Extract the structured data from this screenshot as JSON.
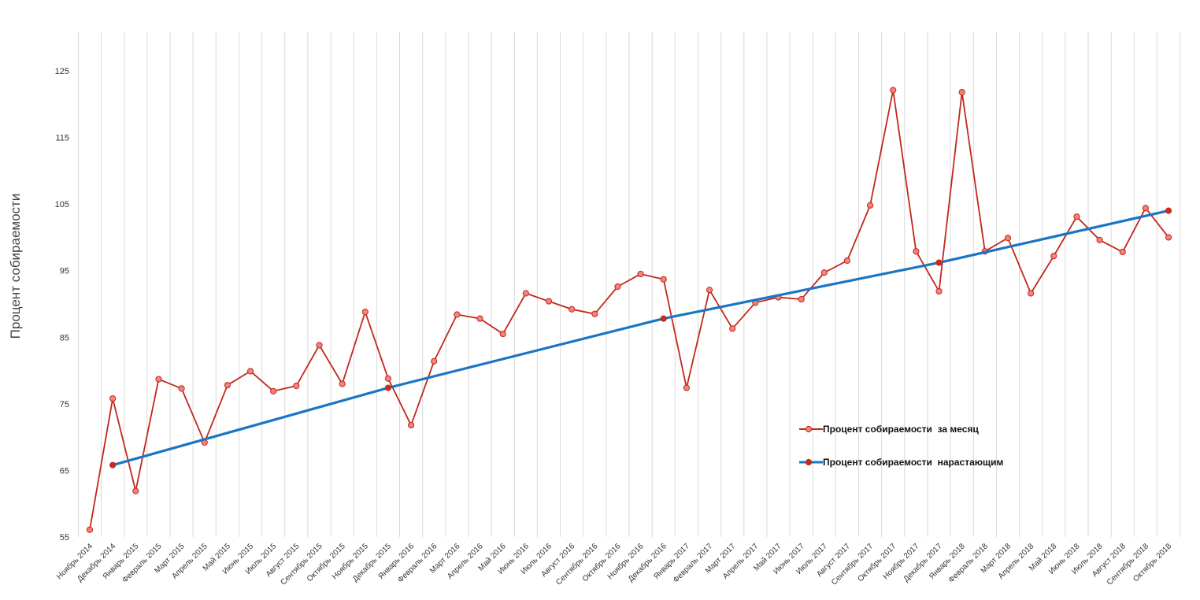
{
  "chart_data": {
    "type": "line",
    "ylabel": "Процент собираемости",
    "ylim": [
      55,
      125
    ],
    "yticks": [
      55,
      65,
      75,
      85,
      95,
      105,
      115,
      125
    ],
    "grid": "vertical",
    "legend_position": "right-center",
    "categories": [
      "Ноябрь 2014",
      "Декабрь 2014",
      "Январь 2015",
      "Февраль 2015",
      "Март 2015",
      "Апрель 2015",
      "Май 2015",
      "Июнь 2015",
      "Июль 2015",
      "Август 2015",
      "Сентябрь 2015",
      "Октябрь 2015",
      "Ноябрь 2015",
      "Декабрь 2015",
      "Январь 2016",
      "Февраль 2016",
      "Март 2016",
      "Апрель 2016",
      "Май 2016",
      "Июнь 2016",
      "Июль 2016",
      "Август 2016",
      "Сентябрь 2016",
      "Октябрь 2016",
      "Ноябрь 2016",
      "Декабрь 2016",
      "Январь 2017",
      "Февраль 2017",
      "Март 2017",
      "Апрель 2017",
      "Май 2017",
      "Июнь 2017",
      "Июль 2017",
      "Август 2017",
      "Сентябрь 2017",
      "Октябрь 2017",
      "Ноябрь 2017",
      "Декабрь 2017",
      "Январь 2018",
      "Февраль 2018",
      "Март 2018",
      "Апрель 2018",
      "Май 2018",
      "Июнь 2018",
      "Июль 2018",
      "Август 2018",
      "Сентябрь 2018",
      "Октябрь 2018"
    ],
    "series": [
      {
        "name": "Процент собираемости  за месяц",
        "color": "#c0281c",
        "marker_fill": "#f4827a",
        "values": [
          56.1,
          75.8,
          61.9,
          78.7,
          77.3,
          69.2,
          77.8,
          79.9,
          76.9,
          77.7,
          83.8,
          78.0,
          88.8,
          78.8,
          71.8,
          81.4,
          88.4,
          87.8,
          85.5,
          91.6,
          90.4,
          89.2,
          88.5,
          92.6,
          94.5,
          93.7,
          77.4,
          92.1,
          86.3,
          90.2,
          91.0,
          90.7,
          94.7,
          96.5,
          104.8,
          122.1,
          97.9,
          91.9,
          121.8,
          97.9,
          99.9,
          91.6,
          97.2,
          103.1,
          99.6,
          97.8,
          104.4,
          100.0
        ]
      },
      {
        "name": "Процент собираемости  нарастающим",
        "color": "#1a75c2",
        "marker_fill": "#c82a1e",
        "points": [
          {
            "category": "Декабрь 2014",
            "value": 65.8
          },
          {
            "category": "Декабрь 2015",
            "value": 77.4
          },
          {
            "category": "Декабрь 2016",
            "value": 87.8
          },
          {
            "category": "Декабрь 2017",
            "value": 96.2
          },
          {
            "category": "Октябрь 2018",
            "value": 104.0
          }
        ]
      }
    ]
  }
}
